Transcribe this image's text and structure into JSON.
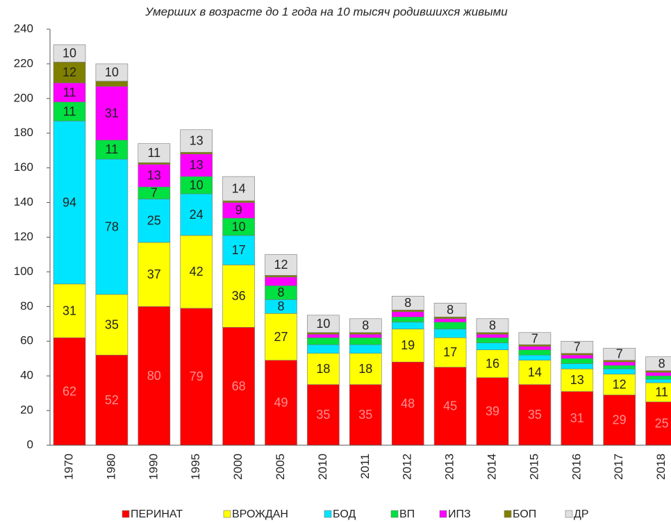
{
  "chart_data": {
    "type": "stacked_bar",
    "title": "Умерших в возрасте до 1 года на 10 тысяч родившихся живыми",
    "categories": [
      "1970",
      "1980",
      "1990",
      "1995",
      "2000",
      "2005",
      "2010",
      "2011",
      "2012",
      "2013",
      "2014",
      "2015",
      "2016",
      "2017",
      "2018"
    ],
    "series": [
      {
        "name": "ПЕРИНАТ",
        "color": "#ff0000",
        "values": [
          62,
          52,
          80,
          79,
          68,
          49,
          35,
          35,
          48,
          45,
          39,
          35,
          31,
          29,
          25
        ]
      },
      {
        "name": "ВРОЖДАН",
        "color": "#ffff00",
        "values": [
          31,
          35,
          37,
          42,
          36,
          27,
          18,
          18,
          19,
          17,
          16,
          14,
          13,
          12,
          11
        ]
      },
      {
        "name": "БОД",
        "color": "#00e5ff",
        "values": [
          94,
          78,
          25,
          24,
          17,
          8,
          5,
          5,
          4,
          5,
          4,
          3,
          3,
          3,
          2
        ]
      },
      {
        "name": "ВП",
        "color": "#00e040",
        "values": [
          11,
          11,
          7,
          10,
          10,
          8,
          4,
          4,
          3,
          4,
          3,
          3,
          3,
          2,
          2
        ]
      },
      {
        "name": "ИПЗ",
        "color": "#ff00ff",
        "values": [
          11,
          31,
          13,
          13,
          9,
          5,
          2,
          2,
          3,
          2,
          2,
          2,
          2,
          2,
          2
        ]
      },
      {
        "name": "БОП",
        "color": "#808000",
        "values": [
          12,
          3,
          1,
          1,
          1,
          1,
          1,
          1,
          1,
          1,
          1,
          1,
          1,
          1,
          1
        ]
      },
      {
        "name": "ДР",
        "color": "#e0e0e0",
        "values": [
          10,
          10,
          11,
          13,
          14,
          12,
          10,
          8,
          8,
          8,
          8,
          7,
          7,
          7,
          8
        ]
      }
    ],
    "ylim": [
      0,
      240
    ],
    "yticks": [
      0,
      20,
      40,
      60,
      80,
      100,
      120,
      140,
      160,
      180,
      200,
      220,
      240
    ],
    "grid": false
  }
}
